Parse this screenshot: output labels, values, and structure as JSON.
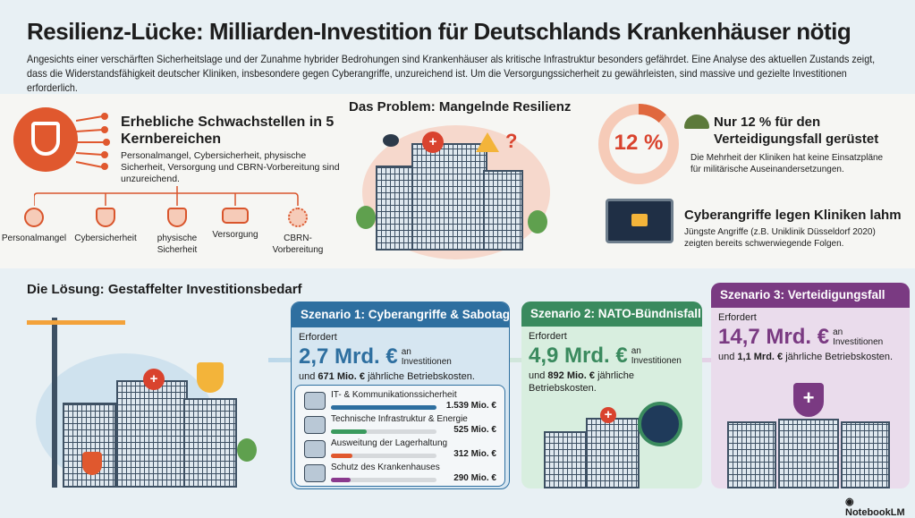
{
  "title": "Resilienz-Lücke: Milliarden-Investition für Deutschlands Krankenhäuser nötig",
  "intro": "Angesichts einer verschärften Sicherheitslage und der Zunahme hybrider Bedrohungen sind Krankenhäuser als kritische Infrastruktur besonders gefährdet. Eine Analyse des aktuellen Zustands zeigt, dass die Widerstandsfähigkeit deutscher Kliniken, insbesondere gegen Cyberangriffe, unzureichend ist. Um die Versorgungssicherheit zu gewährleisten, sind massive und gezielte Investitionen erforderlich.",
  "problem": {
    "heading": "Das Problem: Mangelnde Resilienz",
    "weak": {
      "title": "Erhebliche Schwachstellen in 5 Kernbereichen",
      "text": "Personalmangel, Cybersicherheit, physische Sicherheit, Versorgung und CBRN-Vorbereitung sind unzureichend.",
      "categories": [
        {
          "label": "Personalmangel",
          "icon": "person-check-icon"
        },
        {
          "label": "Cybersicherheit",
          "icon": "shield-lock-icon"
        },
        {
          "label": "physische Sicherheit",
          "icon": "shield-lock-icon"
        },
        {
          "label": "Versorgung",
          "icon": "truck-icon"
        },
        {
          "label": "CBRN-Vorbereitung",
          "icon": "radiation-icon"
        }
      ]
    },
    "defense": {
      "percent_label": "12 %",
      "percent": 12,
      "title": "Nur 12 % für den Verteidigungsfall gerüstet",
      "text": "Die Mehrheit der Kliniken hat keine Einsatzpläne für militärische Auseinandersetzungen."
    },
    "cyber": {
      "title": "Cyberangriffe legen Kliniken lahm",
      "text": "Jüngste Angriffe (z.B. Uniklinik Düsseldorf 2020) zeigten bereits schwerwiegende Folgen."
    }
  },
  "solution": {
    "heading": "Die Lösung: Gestaffelter Investitionsbedarf",
    "s1": {
      "title": "Szenario 1: Cyberangriffe & Sabotage",
      "pre": "Erfordert",
      "amount": "2,7 Mrd. €",
      "post": "an Investitionen",
      "ops_pre": "und",
      "ops": "671 Mio. €",
      "ops_post": "jährliche Betriebskosten.",
      "items": [
        {
          "label": "IT- & Kommunikationssicherheit",
          "value": "1.539 Mio. €",
          "share": 1.0,
          "color": "#2e6fa0",
          "icon": "computer-icon"
        },
        {
          "label": "Technische Infrastruktur & Energie",
          "value": "525 Mio. €",
          "share": 0.34,
          "color": "#3a9a5e",
          "icon": "plug-icon"
        },
        {
          "label": "Ausweitung der Lagerhaltung",
          "value": "312 Mio. €",
          "share": 0.2,
          "color": "#e0582e",
          "icon": "warehouse-icon"
        },
        {
          "label": "Schutz des Krankenhauses",
          "value": "290 Mio. €",
          "share": 0.19,
          "color": "#8a3a8e",
          "icon": "camera-icon"
        }
      ]
    },
    "s2": {
      "title": "Szenario 2: NATO-Bündnisfall",
      "pre": "Erfordert",
      "amount": "4,9 Mrd. €",
      "post": "an Investitionen",
      "ops_pre": "und",
      "ops": "892 Mio. €",
      "ops_post": "jährliche Betriebskosten."
    },
    "s3": {
      "title": "Szenario 3: Verteidigungsfall",
      "pre": "Erfordert",
      "amount": "14,7 Mrd. €",
      "post": "an Investitionen",
      "ops_pre": "und",
      "ops": "1,1 Mrd. €",
      "ops_post": "jährliche Betriebskosten."
    }
  },
  "colors": {
    "orange": "#d9552c",
    "blue": "#2e6fa0",
    "green": "#3a8a5e",
    "purple": "#7a3a82"
  },
  "footer": "NotebookLM"
}
